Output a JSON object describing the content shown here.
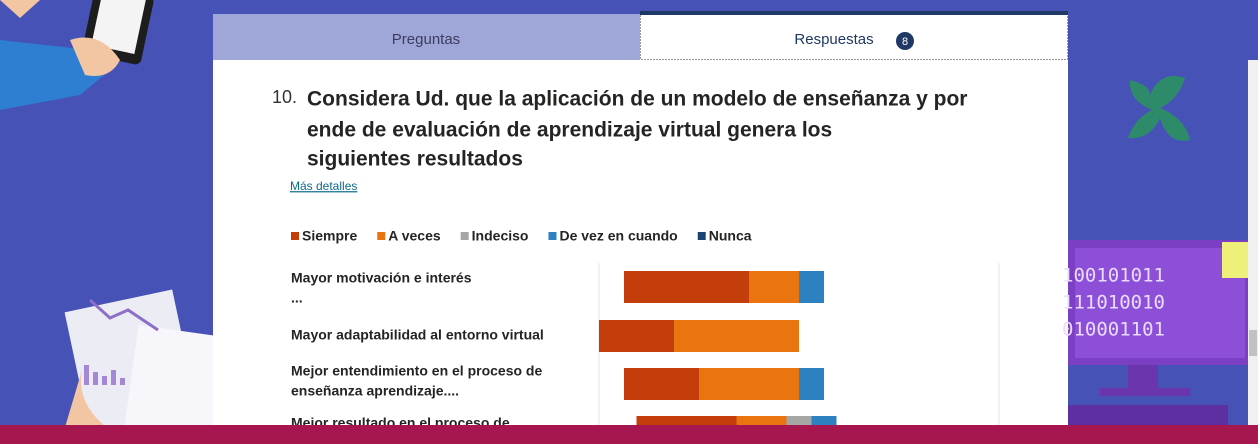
{
  "tabs": [
    "Preguntas",
    "Respuestas"
  ],
  "response_count": 8,
  "question": {
    "number": "10.",
    "title_lines": [
      "Considera Ud. que la aplicación de  un modelo de enseñanza y por",
      "ende de evaluación de aprendizaje virtual genera los",
      "siguientes resultados"
    ],
    "details_link": "Más detalles"
  },
  "decor_binary": [
    "100101011",
    "111010010",
    "010001101"
  ],
  "chart_data": {
    "type": "diverging-bar",
    "categories": [
      [
        "Mayor motivación e interés",
        "..."
      ],
      [
        "Mayor adaptabilidad al entorno virtual"
      ],
      [
        "Mejor entendimiento en el proceso de",
        "enseñanza aprendizaje...."
      ],
      [
        "Mejor resultado en el proceso de"
      ]
    ],
    "series": [
      {
        "name": "Siempre",
        "color": "#c43e0c",
        "values": [
          5,
          3,
          3,
          4
        ]
      },
      {
        "name": "A veces",
        "color": "#ea7410",
        "values": [
          2,
          5,
          4,
          2
        ]
      },
      {
        "name": "Indeciso",
        "color": "#a6a6a6",
        "values": [
          0,
          0,
          0,
          1
        ]
      },
      {
        "name": "De vez en cuando",
        "color": "#2e81c0",
        "values": [
          1,
          0,
          1,
          1
        ]
      },
      {
        "name": "Nunca",
        "color": "#1b4475",
        "values": [
          0,
          0,
          0,
          0
        ]
      }
    ]
  }
}
